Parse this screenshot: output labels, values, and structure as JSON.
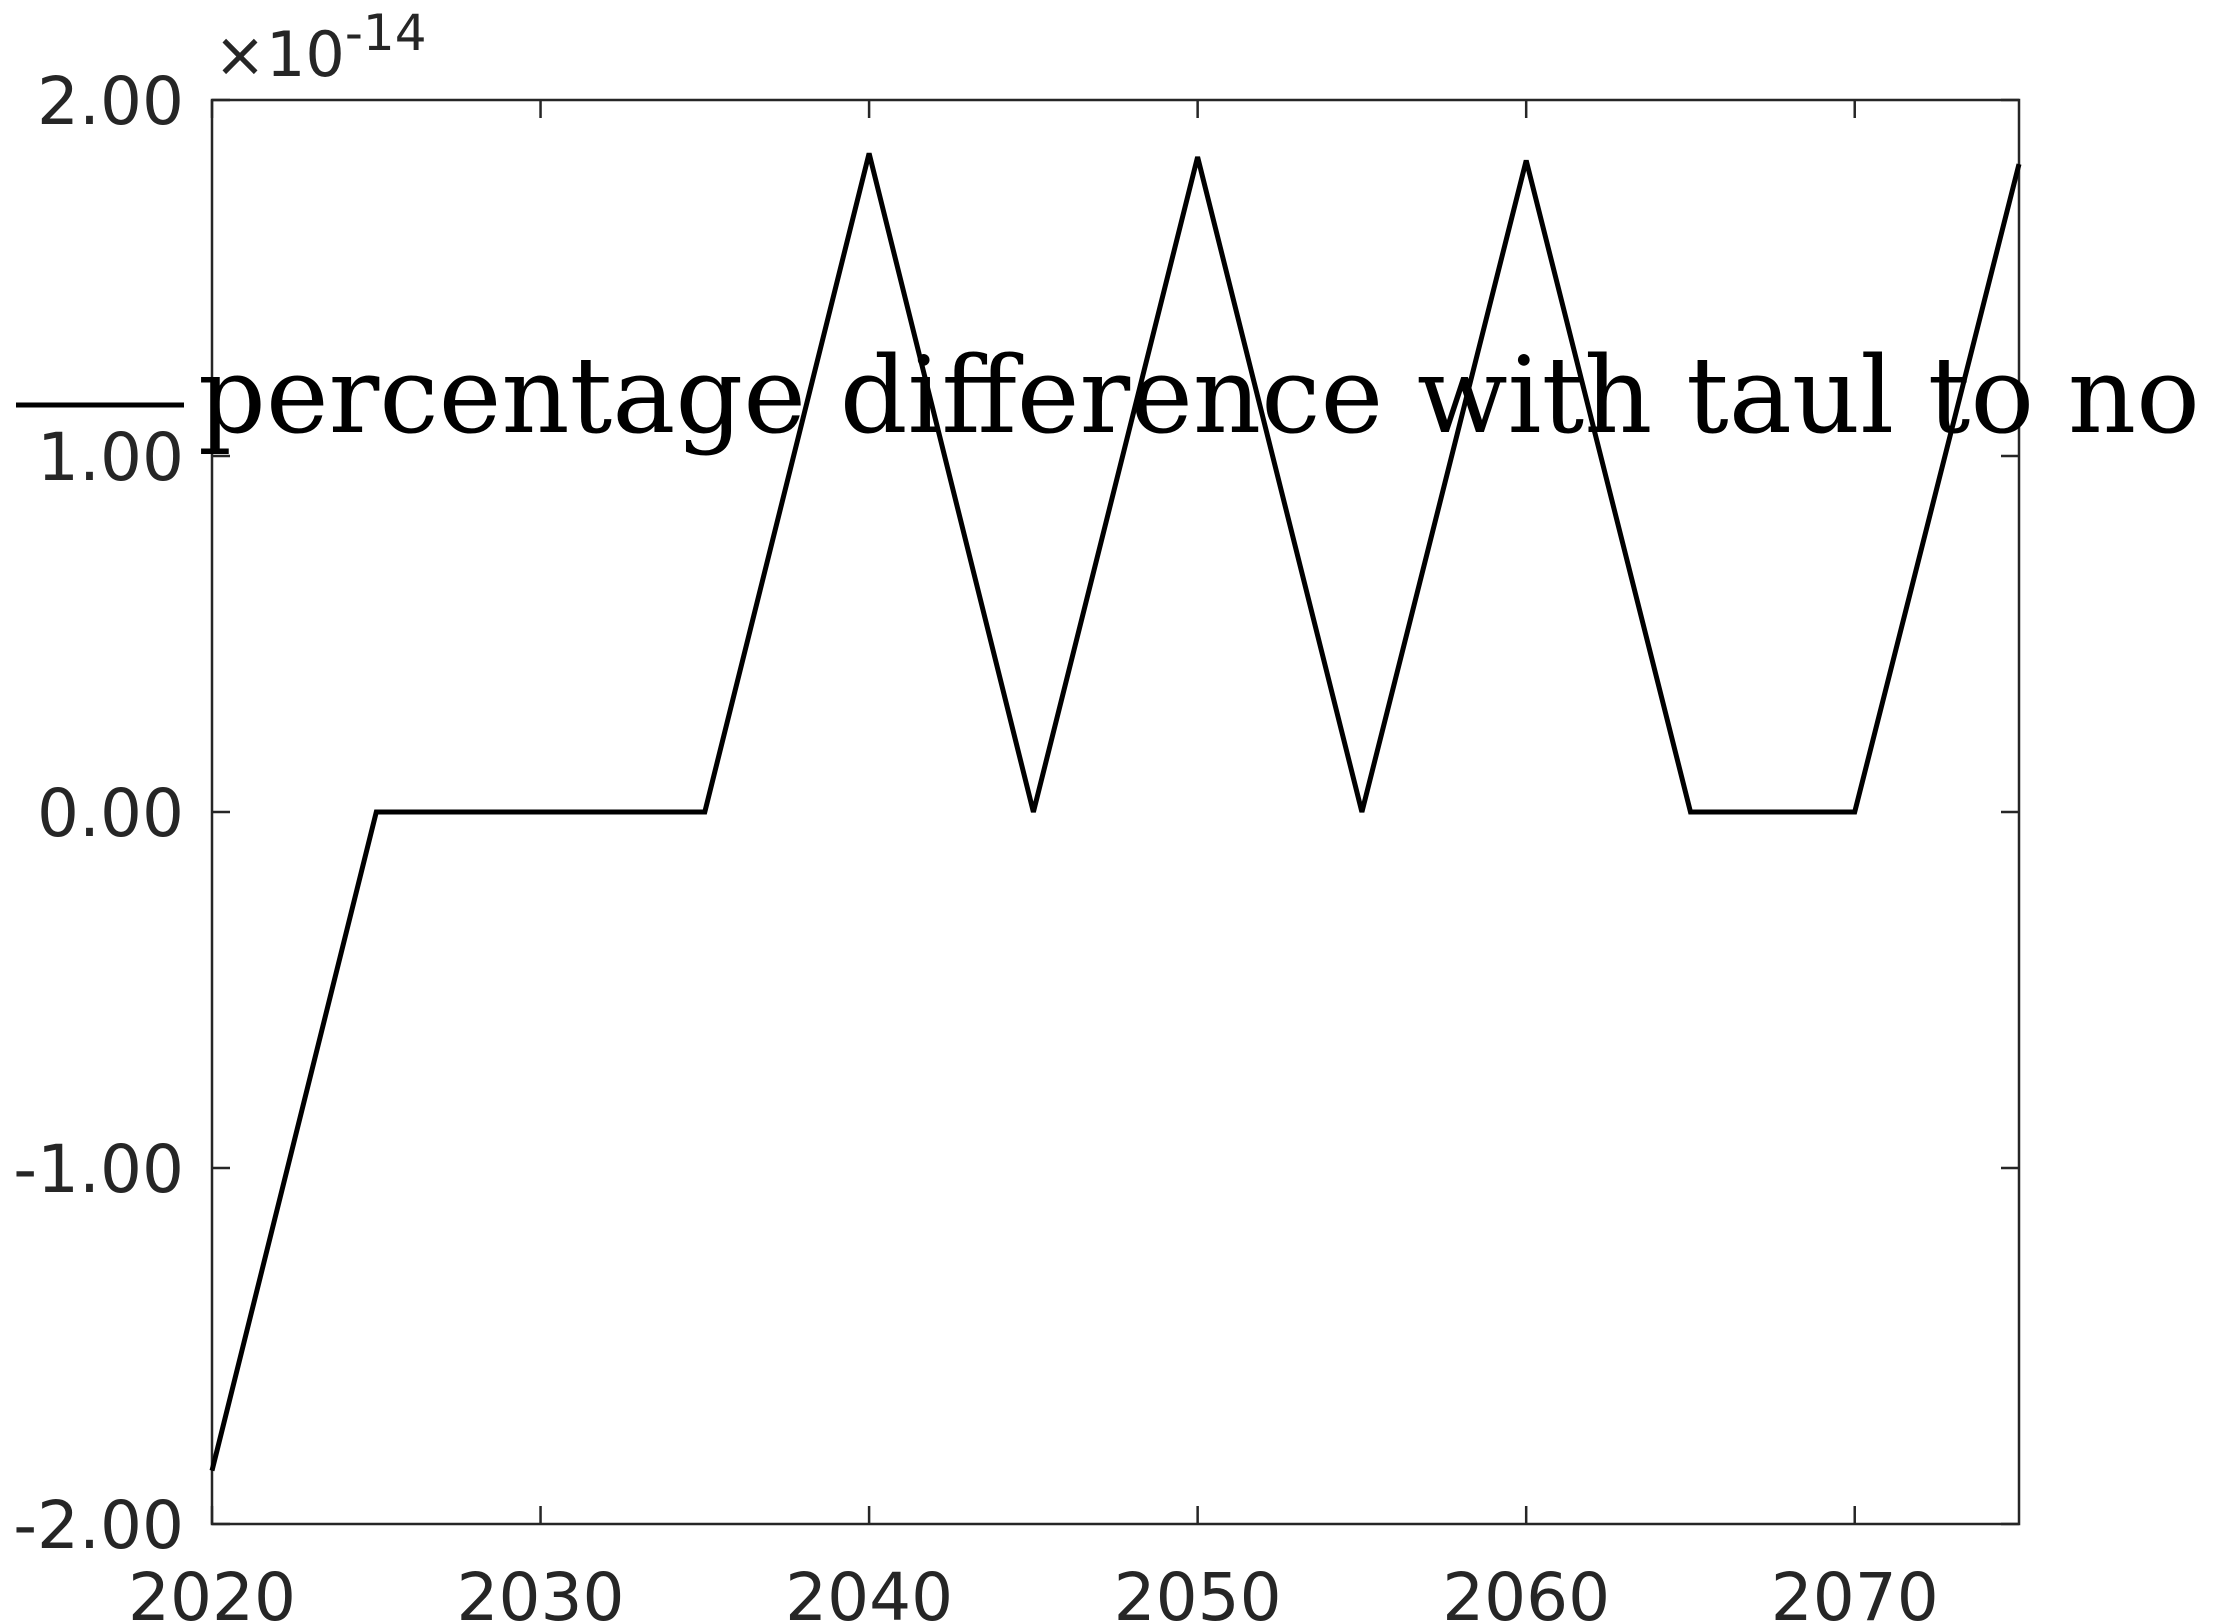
{
  "chart_data": {
    "type": "line",
    "title": "",
    "xlabel": "",
    "ylabel": "",
    "x": [
      2020,
      2025,
      2030,
      2035,
      2040,
      2045,
      2050,
      2055,
      2060,
      2065,
      2070,
      2075
    ],
    "series": [
      {
        "name": "percentage difference with taul to no taul",
        "values": [
          -1.85e-14,
          0,
          0,
          0,
          1.85e-14,
          0,
          1.84e-14,
          0,
          1.83e-14,
          0,
          0,
          1.82e-14
        ]
      }
    ],
    "xlim": [
      2020,
      2075
    ],
    "ylim": [
      -2e-14,
      2e-14
    ],
    "x_ticks": [
      2020,
      2030,
      2040,
      2050,
      2060,
      2070
    ],
    "x_tick_labels": [
      "2020",
      "2030",
      "2040",
      "2050",
      "2060",
      "2070"
    ],
    "y_ticks": [
      -2e-14,
      -1e-14,
      0,
      1e-14,
      2e-14
    ],
    "y_tick_labels": [
      "-2.00",
      "-1.00",
      "0.00",
      "1.00",
      "2.00"
    ],
    "y_exponent": {
      "base": "×10",
      "power": "-14"
    },
    "legend": {
      "placement": "top",
      "box": false
    },
    "grid": false,
    "colors": {
      "line": "#000000",
      "axes": "#262626"
    }
  }
}
